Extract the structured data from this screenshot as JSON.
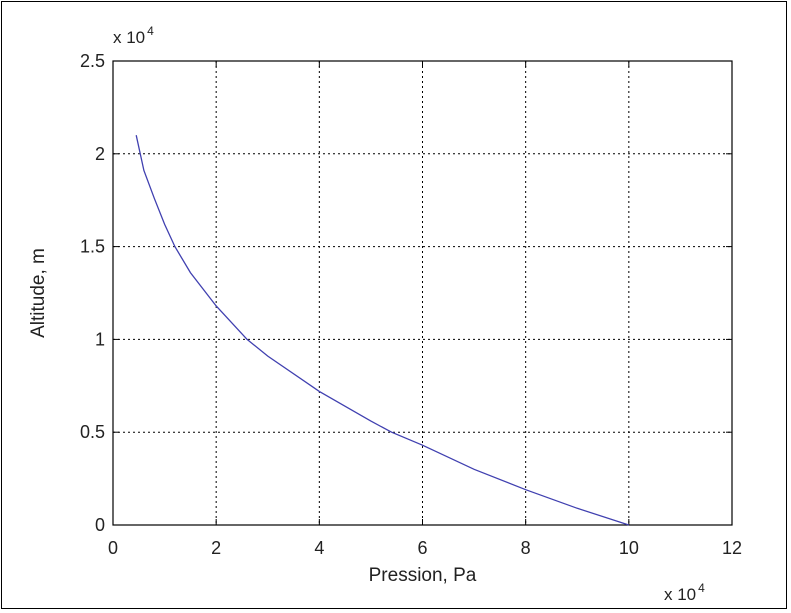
{
  "chart_data": {
    "type": "line",
    "title": "",
    "xlabel": "Pression, Pa",
    "ylabel": "Altitude, m",
    "x_multiplier": "x 10",
    "x_multiplier_exp": "4",
    "y_multiplier": "x 10",
    "y_multiplier_exp": "4",
    "xlim": [
      0,
      12
    ],
    "ylim": [
      0,
      2.5
    ],
    "x_ticks": [
      "0",
      "2",
      "4",
      "6",
      "8",
      "10",
      "12"
    ],
    "y_ticks": [
      "0",
      "0.5",
      "1",
      "1.5",
      "2",
      "2.5"
    ],
    "grid": true,
    "series": [
      {
        "color": "#4040b0",
        "x": [
          0.45,
          0.6,
          0.8,
          1.0,
          1.2,
          1.5,
          2.0,
          2.6,
          3.0,
          4.0,
          5.0,
          5.4,
          6.0,
          7.0,
          8.0,
          9.0,
          10.0
        ],
        "y": [
          2.1,
          1.91,
          1.76,
          1.62,
          1.5,
          1.36,
          1.18,
          1.0,
          0.91,
          0.72,
          0.56,
          0.5,
          0.43,
          0.3,
          0.19,
          0.09,
          0.0
        ]
      }
    ]
  }
}
